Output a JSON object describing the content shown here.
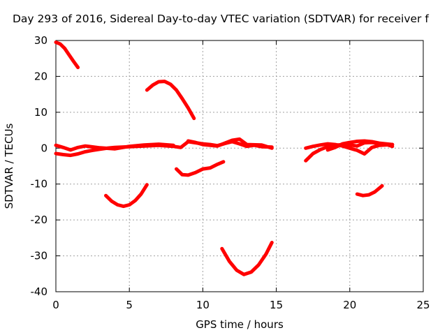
{
  "chart_data": {
    "type": "line",
    "title": "Day 293 of 2016, Sidereal Day-to-day VTEC variation (SDTVAR) for receiver f",
    "xlabel": "GPS time / hours",
    "ylabel": "SDTVAR / TECUs",
    "xlim": [
      0,
      25
    ],
    "ylim": [
      -40,
      30
    ],
    "xticks": [
      0,
      5,
      10,
      15,
      20,
      25
    ],
    "yticks": [
      -40,
      -30,
      -20,
      -10,
      0,
      10,
      20,
      30
    ],
    "grid": true,
    "legend": "none",
    "color": "#ff0000",
    "series": [
      {
        "x": [
          0,
          0.3,
          0.6,
          0.9,
          1.2,
          1.5
        ],
        "y": [
          29.5,
          29,
          27.8,
          26,
          24.2,
          22.5
        ]
      },
      {
        "x": [
          6.2,
          6.6,
          7,
          7.4,
          7.8,
          8.2,
          8.6,
          9,
          9.4
        ],
        "y": [
          16.2,
          17.6,
          18.5,
          18.6,
          17.8,
          16.2,
          13.8,
          11.2,
          8.3
        ]
      },
      {
        "x": [
          3.4,
          3.8,
          4.2,
          4.6,
          5,
          5.4,
          5.8,
          6.2
        ],
        "y": [
          -13.2,
          -14.8,
          -15.8,
          -16.2,
          -15.8,
          -14.6,
          -12.8,
          -10.2
        ]
      },
      {
        "x": [
          8.2,
          8.6,
          9,
          9.5,
          10,
          10.5,
          11,
          11.4
        ],
        "y": [
          -5.8,
          -7.4,
          -7.5,
          -6.8,
          -5.8,
          -5.5,
          -4.5,
          -3.8
        ]
      },
      {
        "x": [
          11.3,
          11.8,
          12.3,
          12.8,
          13.3,
          13.8,
          14.3,
          14.7
        ],
        "y": [
          -28,
          -31.5,
          -34,
          -35.2,
          -34.5,
          -32.5,
          -29.5,
          -26.3
        ]
      },
      {
        "x": [
          20.5,
          20.9,
          21.3,
          21.7,
          22.2
        ],
        "y": [
          -12.8,
          -13.2,
          -13,
          -12.2,
          -10.5
        ]
      },
      {
        "x": [
          0,
          0.5,
          1,
          1.5,
          2,
          2.5,
          3,
          3.5,
          4,
          5,
          6,
          7,
          8,
          8.5,
          9,
          10,
          10.5,
          11,
          11.5,
          12,
          12.5,
          13,
          13.5,
          14,
          14.7
        ],
        "y": [
          -1.5,
          -1.8,
          -2,
          -1.6,
          -1,
          -0.6,
          -0.3,
          0,
          0.2,
          0.4,
          0.6,
          0.8,
          0.5,
          0.2,
          1.8,
          1.2,
          1,
          0.7,
          1.3,
          1.8,
          1.2,
          0.5,
          0.8,
          0.4,
          0.3
        ]
      },
      {
        "x": [
          0,
          0.5,
          1,
          1.5,
          2,
          3,
          4,
          5,
          6,
          7,
          8
        ],
        "y": [
          0.8,
          0.2,
          -0.5,
          0.2,
          0.6,
          0.1,
          -0.2,
          0.5,
          0.9,
          1.1,
          0.8
        ]
      },
      {
        "x": [
          9,
          9.5,
          10,
          11,
          12,
          12.5,
          13,
          14,
          14.7
        ],
        "y": [
          2,
          1.6,
          1,
          0.6,
          2.2,
          2.5,
          1,
          0.9,
          0
        ]
      },
      {
        "x": [
          17,
          17.5,
          18,
          18.5,
          19,
          19.5,
          20,
          20.5,
          21,
          21.5,
          22,
          22.5,
          22.9
        ],
        "y": [
          -3.5,
          -1.5,
          -0.4,
          0.4,
          0.8,
          1,
          0.9,
          0.6,
          1.5,
          1.6,
          1.3,
          1,
          0.5
        ]
      },
      {
        "x": [
          17,
          17.5,
          18,
          18.5,
          19,
          19.5,
          20,
          20.5,
          21,
          21.5,
          22,
          22.9
        ],
        "y": [
          0,
          0.5,
          0.9,
          1.2,
          1,
          0.6,
          0,
          -0.6,
          -1.6,
          0.2,
          0.8,
          1
        ]
      },
      {
        "x": [
          18.5,
          19,
          19.5,
          20,
          20.5,
          21,
          21.5,
          22,
          22.9
        ],
        "y": [
          -0.5,
          0.2,
          1.2,
          1.6,
          1.9,
          2,
          1.8,
          1.4,
          1
        ]
      }
    ]
  }
}
